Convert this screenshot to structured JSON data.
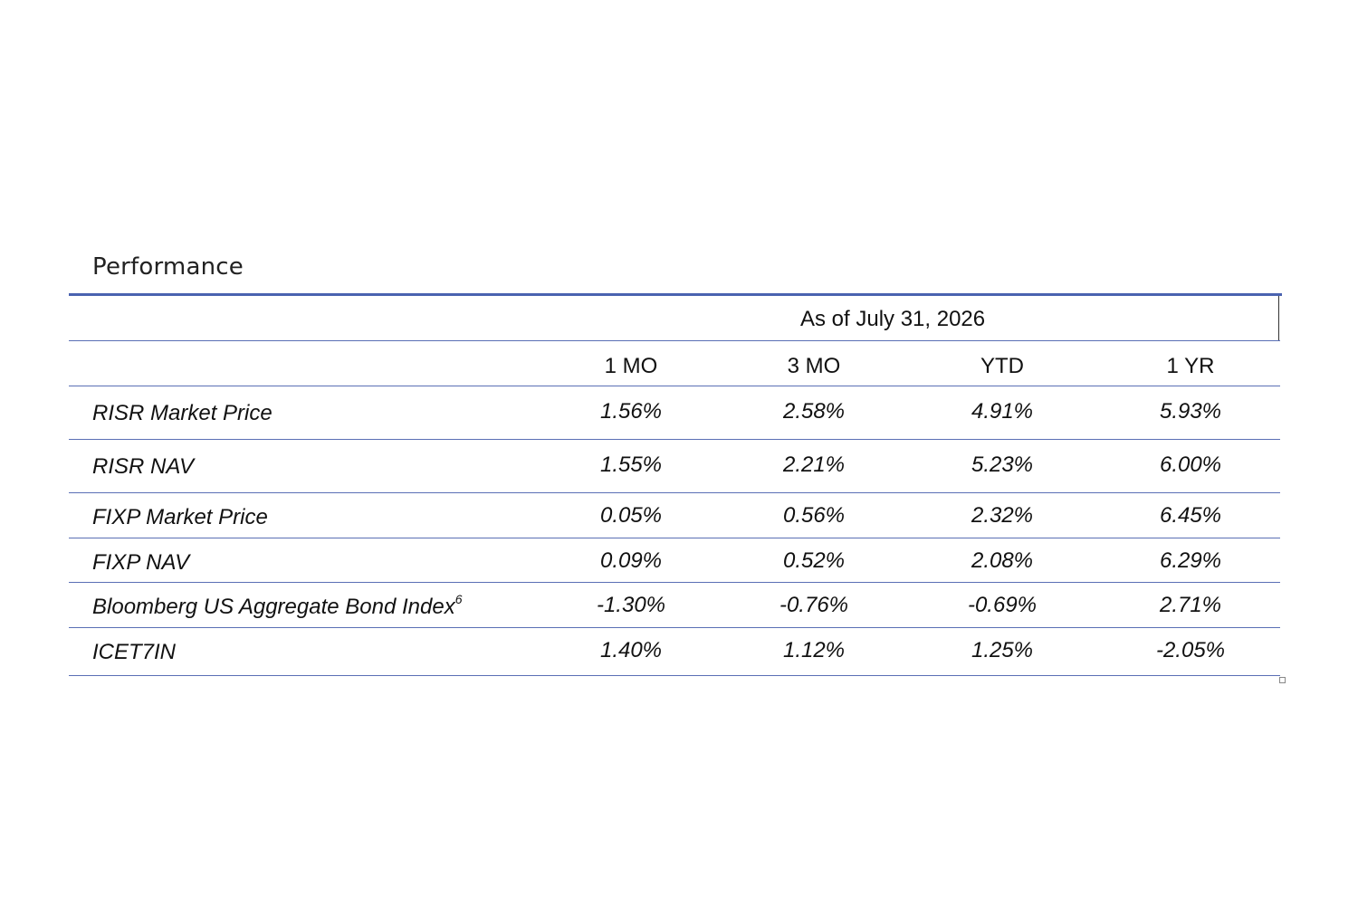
{
  "title": "Performance",
  "as_of": "As of July 31, 2026",
  "columns": [
    "1 MO",
    "3 MO",
    "YTD",
    "1 YR"
  ],
  "rows": [
    {
      "label": "RISR Market Price",
      "footnote": "",
      "values": [
        "1.56%",
        "2.58%",
        "4.91%",
        "5.93%"
      ]
    },
    {
      "label": "RISR NAV",
      "footnote": "",
      "values": [
        "1.55%",
        "2.21%",
        "5.23%",
        "6.00%"
      ]
    },
    {
      "label": "FIXP Market Price",
      "footnote": "",
      "values": [
        "0.05%",
        "0.56%",
        "2.32%",
        "6.45%"
      ]
    },
    {
      "label": "FIXP NAV",
      "footnote": "",
      "values": [
        "0.09%",
        "0.52%",
        "2.08%",
        "6.29%"
      ]
    },
    {
      "label": "Bloomberg US Aggregate Bond Index",
      "footnote": "6",
      "values": [
        "-1.30%",
        "-0.76%",
        "-0.69%",
        "2.71%"
      ]
    },
    {
      "label": "ICET7IN",
      "footnote": "",
      "values": [
        "1.40%",
        "1.12%",
        "1.25%",
        "-2.05%"
      ]
    }
  ],
  "colors": {
    "accent_rule": "#4a63b0",
    "row_rule": "#5a6fb5",
    "text": "#111111"
  }
}
